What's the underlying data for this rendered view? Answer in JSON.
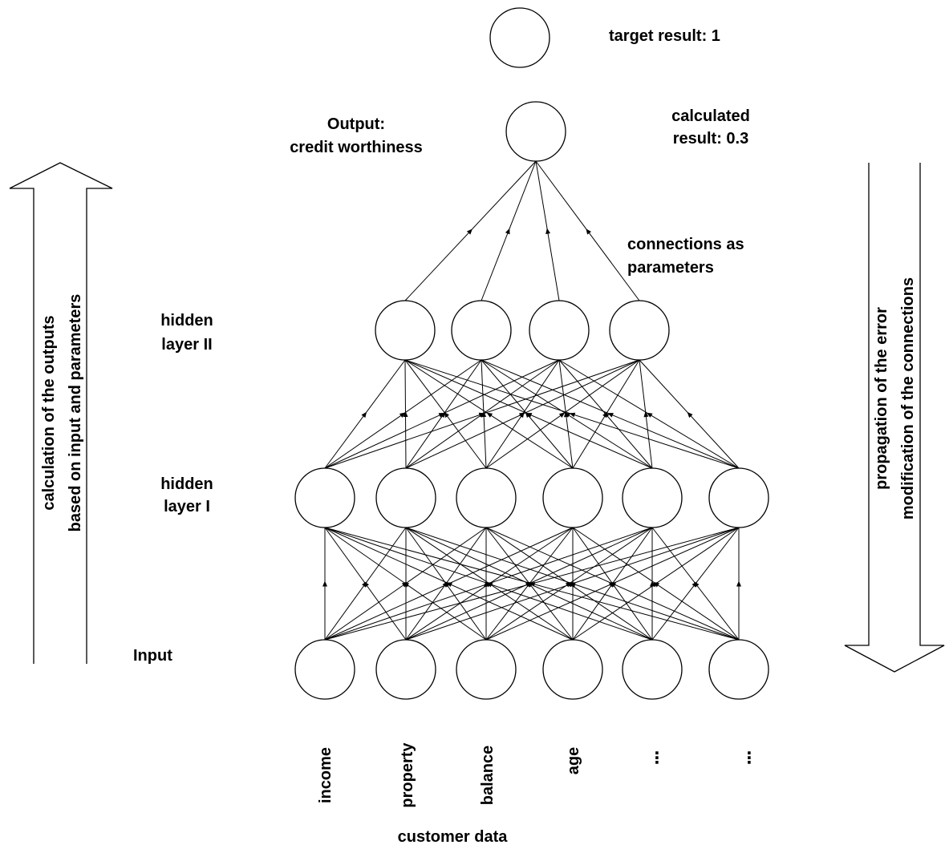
{
  "labels": {
    "target_result": "target result: 1",
    "output_title_line1": "Output:",
    "output_title_line2": "credit worthiness",
    "calculated_line1": "calculated",
    "calculated_line2": "result: 0.3",
    "connections_line1": "connections  as",
    "connections_line2": "parameters",
    "hidden2_line1": "hidden",
    "hidden2_line2": "layer II",
    "hidden1_line1": "hidden",
    "hidden1_line2": "layer I",
    "input": "Input",
    "customer_data": "customer data",
    "left_arrow_line1": "calculation of the outputs",
    "left_arrow_line2": "based on input and parameters",
    "right_arrow_line1": "propagation of the error",
    "right_arrow_line2": "modification of the connections"
  },
  "inputs": [
    "income",
    "property",
    "balance",
    "age",
    "⋮",
    "⋮"
  ],
  "layers": {
    "input_count": 6,
    "hidden1_count": 6,
    "hidden2_count": 4,
    "output_count": 1,
    "target_count": 1
  }
}
